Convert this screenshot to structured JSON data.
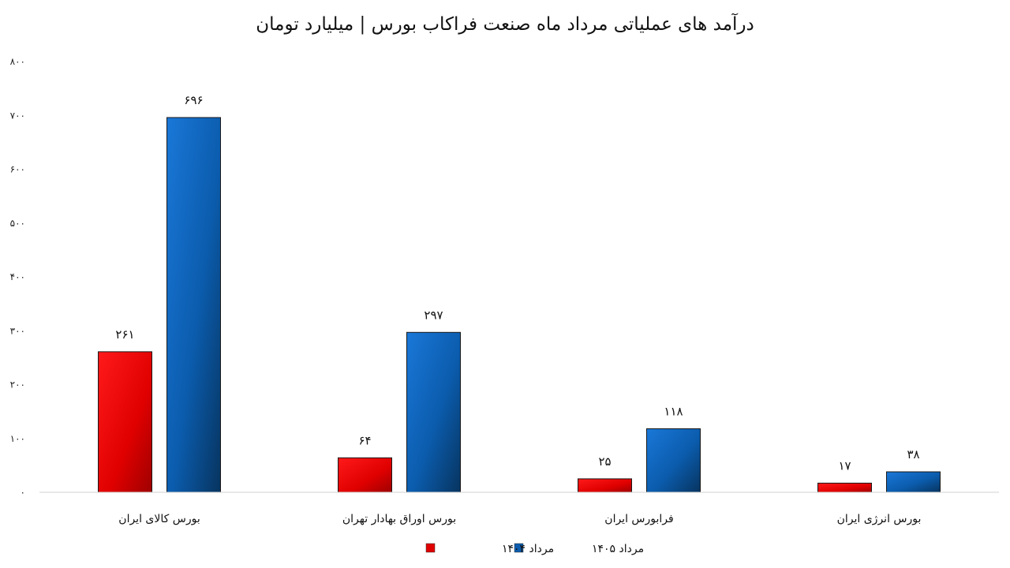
{
  "chart_data": {
    "type": "bar",
    "title": "درآمد های عملیاتی مرداد ماه صنعت فراکاب بورس | میلیارد تومان",
    "xlabel": "",
    "ylabel": "",
    "ylim": [
      0,
      800
    ],
    "yticks": [
      0,
      100,
      200,
      300,
      400,
      500,
      600,
      700,
      800
    ],
    "ytick_labels": [
      "۰",
      "۱۰۰",
      "۲۰۰",
      "۳۰۰",
      "۴۰۰",
      "۵۰۰",
      "۶۰۰",
      "۷۰۰",
      "۸۰۰"
    ],
    "grid": false,
    "legend_position": "bottom-center",
    "categories": [
      "بورس کالای ایران",
      "بورس اوراق بهادار تهران",
      "فرابورس ایران",
      "بورس انرژی ایران"
    ],
    "series": [
      {
        "name": "مرداد ۱۴۰۴",
        "color": "#e00000",
        "values": [
          261,
          64,
          25,
          17
        ],
        "value_labels": [
          "۲۶۱",
          "۶۴",
          "۲۵",
          "۱۷"
        ]
      },
      {
        "name": "مرداد ۱۴۰۵",
        "color": "#0b5cad",
        "values": [
          696,
          297,
          118,
          38
        ],
        "value_labels": [
          "۶۹۶",
          "۲۹۷",
          "۱۱۸",
          "۳۸"
        ]
      }
    ]
  }
}
